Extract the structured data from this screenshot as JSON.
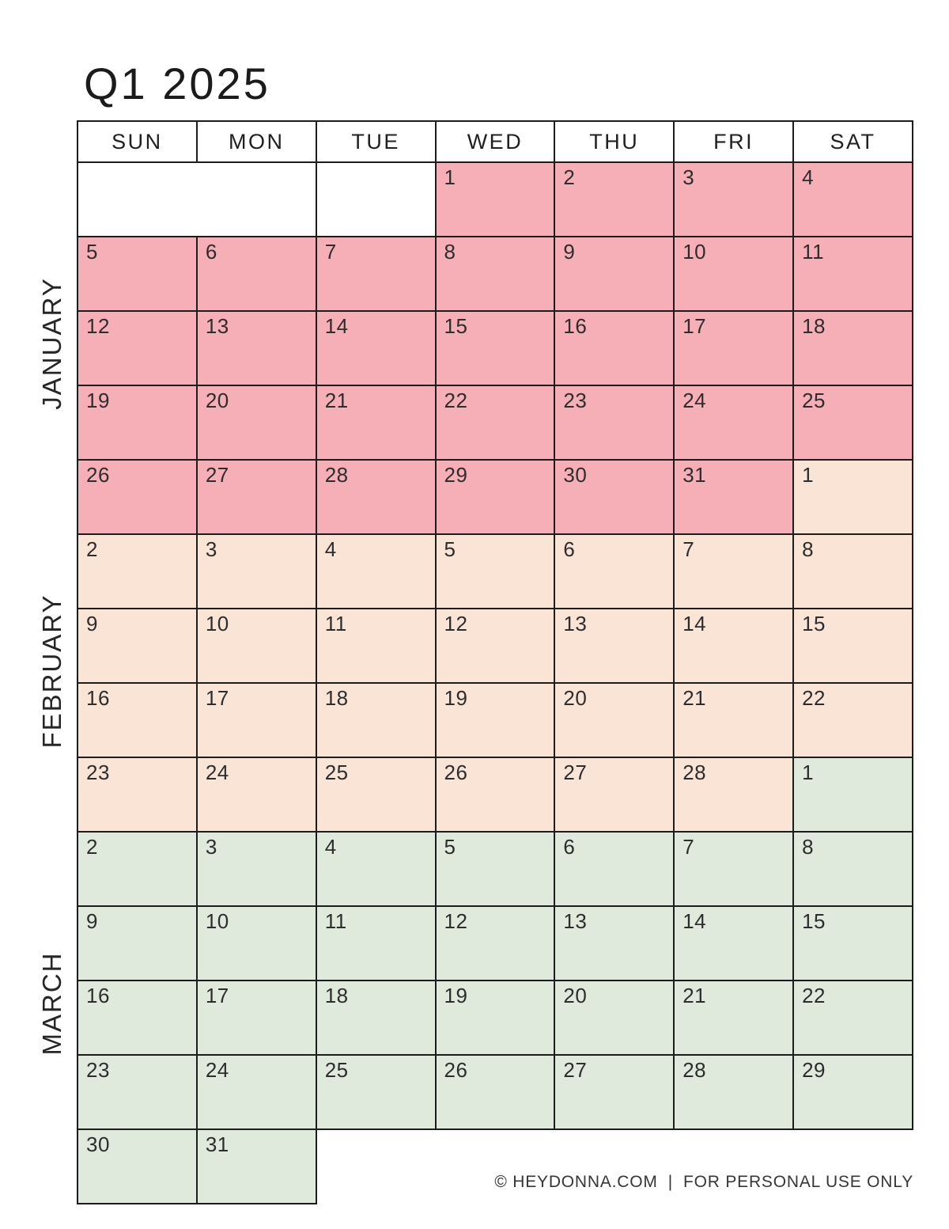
{
  "title": "Q1 2025",
  "weekday_headers": [
    "SUN",
    "MON",
    "TUE",
    "WED",
    "THU",
    "FRI",
    "SAT"
  ],
  "months": [
    {
      "label": "JANUARY"
    },
    {
      "label": "FEBRUARY"
    },
    {
      "label": "MARCH"
    }
  ],
  "colors": {
    "january": "#f6aeb7",
    "february": "#f9e4d6",
    "march": "#dfeadd",
    "grid_line": "#1d1d1d"
  },
  "footer": {
    "copyright": "© HEYDONNA.COM",
    "separator": "|",
    "usage": "FOR PERSONAL USE ONLY"
  },
  "rows": [
    {
      "cells": [
        {
          "day": "",
          "fill": "none",
          "colspan": 2
        },
        {
          "day": "",
          "fill": "none"
        },
        {
          "day": "1",
          "fill": "jan"
        },
        {
          "day": "2",
          "fill": "jan"
        },
        {
          "day": "3",
          "fill": "jan"
        },
        {
          "day": "4",
          "fill": "jan"
        }
      ]
    },
    {
      "cells": [
        {
          "day": "5",
          "fill": "jan"
        },
        {
          "day": "6",
          "fill": "jan"
        },
        {
          "day": "7",
          "fill": "jan"
        },
        {
          "day": "8",
          "fill": "jan"
        },
        {
          "day": "9",
          "fill": "jan"
        },
        {
          "day": "10",
          "fill": "jan"
        },
        {
          "day": "11",
          "fill": "jan"
        }
      ]
    },
    {
      "cells": [
        {
          "day": "12",
          "fill": "jan"
        },
        {
          "day": "13",
          "fill": "jan"
        },
        {
          "day": "14",
          "fill": "jan"
        },
        {
          "day": "15",
          "fill": "jan"
        },
        {
          "day": "16",
          "fill": "jan"
        },
        {
          "day": "17",
          "fill": "jan"
        },
        {
          "day": "18",
          "fill": "jan"
        }
      ]
    },
    {
      "cells": [
        {
          "day": "19",
          "fill": "jan"
        },
        {
          "day": "20",
          "fill": "jan"
        },
        {
          "day": "21",
          "fill": "jan"
        },
        {
          "day": "22",
          "fill": "jan"
        },
        {
          "day": "23",
          "fill": "jan"
        },
        {
          "day": "24",
          "fill": "jan"
        },
        {
          "day": "25",
          "fill": "jan"
        }
      ]
    },
    {
      "cells": [
        {
          "day": "26",
          "fill": "jan"
        },
        {
          "day": "27",
          "fill": "jan"
        },
        {
          "day": "28",
          "fill": "jan"
        },
        {
          "day": "29",
          "fill": "jan"
        },
        {
          "day": "30",
          "fill": "jan"
        },
        {
          "day": "31",
          "fill": "jan"
        },
        {
          "day": "1",
          "fill": "feb"
        }
      ]
    },
    {
      "cells": [
        {
          "day": "2",
          "fill": "feb"
        },
        {
          "day": "3",
          "fill": "feb"
        },
        {
          "day": "4",
          "fill": "feb"
        },
        {
          "day": "5",
          "fill": "feb"
        },
        {
          "day": "6",
          "fill": "feb"
        },
        {
          "day": "7",
          "fill": "feb"
        },
        {
          "day": "8",
          "fill": "feb"
        }
      ]
    },
    {
      "cells": [
        {
          "day": "9",
          "fill": "feb"
        },
        {
          "day": "10",
          "fill": "feb"
        },
        {
          "day": "11",
          "fill": "feb"
        },
        {
          "day": "12",
          "fill": "feb"
        },
        {
          "day": "13",
          "fill": "feb"
        },
        {
          "day": "14",
          "fill": "feb"
        },
        {
          "day": "15",
          "fill": "feb"
        }
      ]
    },
    {
      "cells": [
        {
          "day": "16",
          "fill": "feb"
        },
        {
          "day": "17",
          "fill": "feb"
        },
        {
          "day": "18",
          "fill": "feb"
        },
        {
          "day": "19",
          "fill": "feb"
        },
        {
          "day": "20",
          "fill": "feb"
        },
        {
          "day": "21",
          "fill": "feb"
        },
        {
          "day": "22",
          "fill": "feb"
        }
      ]
    },
    {
      "cells": [
        {
          "day": "23",
          "fill": "feb"
        },
        {
          "day": "24",
          "fill": "feb"
        },
        {
          "day": "25",
          "fill": "feb"
        },
        {
          "day": "26",
          "fill": "feb"
        },
        {
          "day": "27",
          "fill": "feb"
        },
        {
          "day": "28",
          "fill": "feb"
        },
        {
          "day": "1",
          "fill": "mar"
        }
      ]
    },
    {
      "cells": [
        {
          "day": "2",
          "fill": "mar"
        },
        {
          "day": "3",
          "fill": "mar"
        },
        {
          "day": "4",
          "fill": "mar"
        },
        {
          "day": "5",
          "fill": "mar"
        },
        {
          "day": "6",
          "fill": "mar"
        },
        {
          "day": "7",
          "fill": "mar"
        },
        {
          "day": "8",
          "fill": "mar"
        }
      ]
    },
    {
      "cells": [
        {
          "day": "9",
          "fill": "mar"
        },
        {
          "day": "10",
          "fill": "mar"
        },
        {
          "day": "11",
          "fill": "mar"
        },
        {
          "day": "12",
          "fill": "mar"
        },
        {
          "day": "13",
          "fill": "mar"
        },
        {
          "day": "14",
          "fill": "mar"
        },
        {
          "day": "15",
          "fill": "mar"
        }
      ]
    },
    {
      "cells": [
        {
          "day": "16",
          "fill": "mar"
        },
        {
          "day": "17",
          "fill": "mar"
        },
        {
          "day": "18",
          "fill": "mar"
        },
        {
          "day": "19",
          "fill": "mar"
        },
        {
          "day": "20",
          "fill": "mar"
        },
        {
          "day": "21",
          "fill": "mar"
        },
        {
          "day": "22",
          "fill": "mar"
        }
      ]
    },
    {
      "cells": [
        {
          "day": "23",
          "fill": "mar"
        },
        {
          "day": "24",
          "fill": "mar"
        },
        {
          "day": "25",
          "fill": "mar"
        },
        {
          "day": "26",
          "fill": "mar"
        },
        {
          "day": "27",
          "fill": "mar"
        },
        {
          "day": "28",
          "fill": "mar"
        },
        {
          "day": "29",
          "fill": "mar"
        }
      ]
    },
    {
      "cells": [
        {
          "day": "30",
          "fill": "mar"
        },
        {
          "day": "31",
          "fill": "mar"
        }
      ]
    }
  ]
}
